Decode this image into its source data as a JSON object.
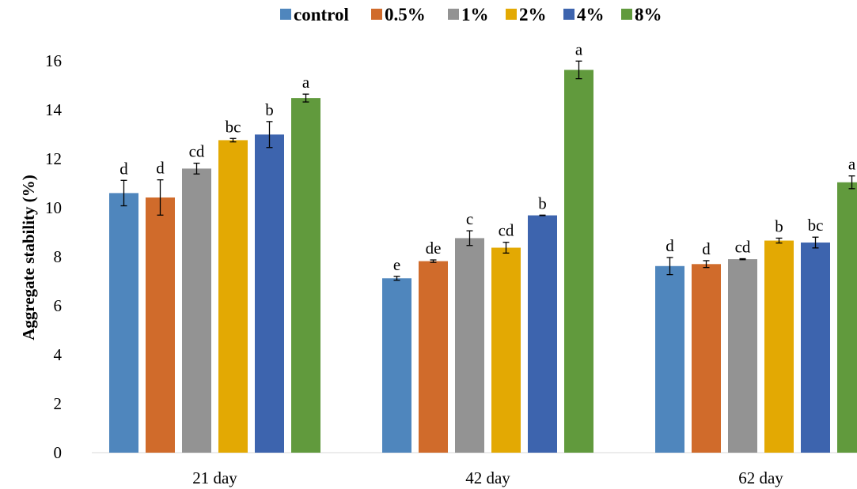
{
  "chart_data": {
    "type": "bar",
    "ylabel": "Aggregate stability (%)",
    "xlabel": "",
    "ylim": [
      0,
      16
    ],
    "yticks": [
      0,
      2,
      4,
      6,
      8,
      10,
      12,
      14,
      16
    ],
    "categories": [
      "21 day",
      "42 day",
      "62 day"
    ],
    "legend_position": "top",
    "grid": false,
    "series": [
      {
        "name": "control",
        "color": "#4f86bd",
        "values": [
          10.6,
          7.12,
          7.62
        ],
        "errors": [
          0.52,
          0.08,
          0.35
        ],
        "labels": [
          "d",
          "e",
          "d"
        ]
      },
      {
        "name": "0.5%",
        "color": "#d06b2b",
        "values": [
          10.42,
          7.82,
          7.7
        ],
        "errors": [
          0.72,
          0.05,
          0.14
        ],
        "labels": [
          "d",
          "de",
          "d"
        ]
      },
      {
        "name": "1%",
        "color": "#939393",
        "values": [
          11.6,
          8.76,
          7.9
        ],
        "errors": [
          0.22,
          0.3,
          0.02
        ],
        "labels": [
          "cd",
          "c",
          "cd"
        ]
      },
      {
        "name": "2%",
        "color": "#e3a903",
        "values": [
          12.76,
          8.37,
          8.66
        ],
        "errors": [
          0.07,
          0.22,
          0.1
        ],
        "labels": [
          "bc",
          "cd",
          "b"
        ]
      },
      {
        "name": "4%",
        "color": "#3d64ae",
        "values": [
          12.99,
          9.69,
          8.58
        ],
        "errors": [
          0.53,
          0.01,
          0.22
        ],
        "labels": [
          "b",
          "b",
          "bc"
        ]
      },
      {
        "name": "8%",
        "color": "#619a3d",
        "values": [
          14.48,
          15.63,
          11.04
        ],
        "errors": [
          0.16,
          0.36,
          0.26
        ],
        "labels": [
          "a",
          "a",
          "a"
        ]
      }
    ]
  }
}
